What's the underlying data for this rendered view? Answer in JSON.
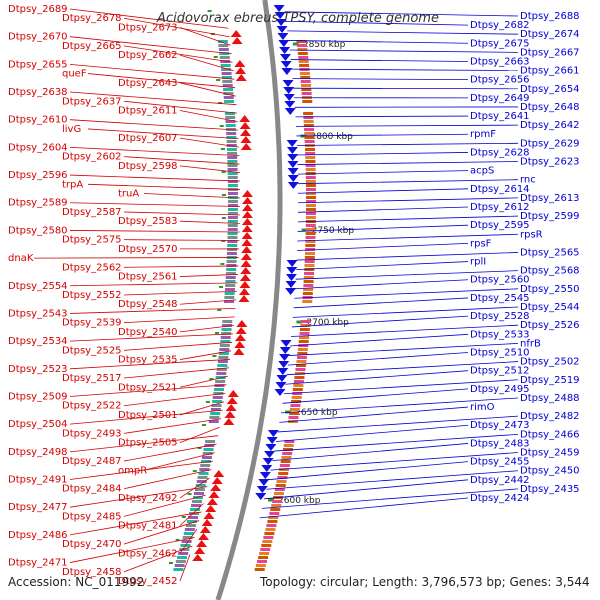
{
  "title": "Acidovorax ebreus TPSY, complete genome",
  "footer": {
    "accession": "Accession: NC_011992",
    "topology": "Topology: circular; Length: 3,796,573 bp; Genes: 3,544"
  },
  "colors": {
    "left_labels": "#d40000",
    "right_labels": "#0000d4",
    "forward_arrows": "#e81010",
    "reverse_arrows": "#1010e0",
    "axis": "#888888",
    "tick": "#2a9a2a"
  },
  "ticks": [
    "2850 kbp",
    "2800 kbp",
    "2750 kbp",
    "2700 kbp",
    "2650 kbp",
    "2600 kbp"
  ],
  "left_labels": [
    "Dtpsy_2689",
    "Dtpsy_2678",
    "Dtpsy_2673",
    "Dtpsy_2670",
    "Dtpsy_2665",
    "Dtpsy_2662",
    "Dtpsy_2655",
    "queF",
    "Dtpsy_2643",
    "Dtpsy_2638",
    "Dtpsy_2637",
    "Dtpsy_2611",
    "Dtpsy_2610",
    "livG",
    "Dtpsy_2607",
    "Dtpsy_2604",
    "Dtpsy_2602",
    "Dtpsy_2598",
    "Dtpsy_2596",
    "trpA",
    "truA",
    "Dtpsy_2589",
    "Dtpsy_2587",
    "Dtpsy_2583",
    "Dtpsy_2580",
    "Dtpsy_2575",
    "Dtpsy_2570",
    "dnaK",
    "Dtpsy_2562",
    "Dtpsy_2561",
    "Dtpsy_2554",
    "Dtpsy_2552",
    "Dtpsy_2548",
    "Dtpsy_2543",
    "Dtpsy_2539",
    "Dtpsy_2540",
    "Dtpsy_2534",
    "Dtpsy_2525",
    "Dtpsy_2535",
    "Dtpsy_2523",
    "Dtpsy_2517",
    "Dtpsy_2521",
    "Dtpsy_2509",
    "Dtpsy_2522",
    "Dtpsy_2501",
    "Dtpsy_2504",
    "Dtpsy_2493",
    "Dtpsy_2505",
    "Dtpsy_2498",
    "Dtpsy_2487",
    "ompR",
    "Dtpsy_2491",
    "Dtpsy_2484",
    "Dtpsy_2492",
    "Dtpsy_2477",
    "Dtpsy_2485",
    "Dtpsy_2481",
    "Dtpsy_2486",
    "Dtpsy_2470",
    "Dtpsy_2462",
    "Dtpsy_2471",
    "Dtpsy_2458",
    "Dtpsy_2452"
  ],
  "right_labels": [
    "Dtpsy_2688",
    "Dtpsy_2682",
    "Dtpsy_2674",
    "Dtpsy_2675",
    "Dtpsy_2667",
    "Dtpsy_2663",
    "Dtpsy_2661",
    "Dtpsy_2656",
    "Dtpsy_2654",
    "Dtpsy_2649",
    "Dtpsy_2648",
    "Dtpsy_2641",
    "Dtpsy_2642",
    "rpmF",
    "Dtpsy_2629",
    "Dtpsy_2628",
    "Dtpsy_2623",
    "acpS",
    "rnc",
    "Dtpsy_2614",
    "Dtpsy_2613",
    "Dtpsy_2612",
    "Dtpsy_2599",
    "Dtpsy_2595",
    "rpsR",
    "rpsF",
    "Dtpsy_2565",
    "rplI",
    "Dtpsy_2568",
    "Dtpsy_2560",
    "Dtpsy_2550",
    "Dtpsy_2545",
    "Dtpsy_2544",
    "Dtpsy_2528",
    "Dtpsy_2526",
    "Dtpsy_2533",
    "nfrB",
    "Dtpsy_2510",
    "Dtpsy_2502",
    "Dtpsy_2512",
    "Dtpsy_2519",
    "Dtpsy_2495",
    "Dtpsy_2488",
    "rimO",
    "Dtpsy_2482",
    "Dtpsy_2473",
    "Dtpsy_2466",
    "Dtpsy_2483",
    "Dtpsy_2459",
    "Dtpsy_2455",
    "Dtpsy_2450",
    "Dtpsy_2442",
    "Dtpsy_2435",
    "Dtpsy_2424"
  ]
}
